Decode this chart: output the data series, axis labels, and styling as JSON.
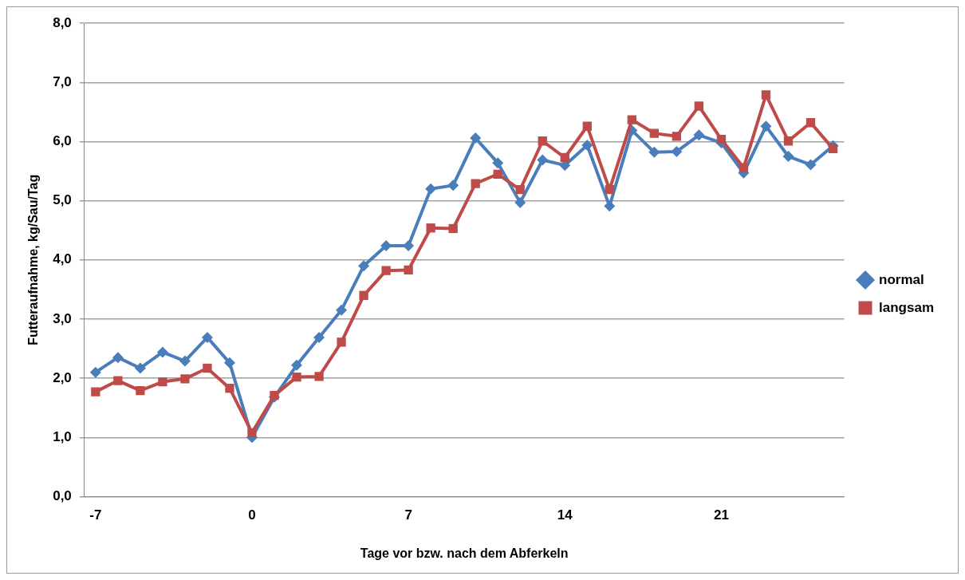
{
  "chart_data": {
    "type": "line",
    "xlabel": "Tage vor bzw. nach dem Abferkeln",
    "ylabel": "Futteraufnahme, kg/Sau/Tag",
    "x": [
      -7,
      -6,
      -5,
      -4,
      -3,
      -2,
      -1,
      0,
      1,
      2,
      3,
      4,
      5,
      6,
      7,
      8,
      9,
      10,
      11,
      12,
      13,
      14,
      15,
      16,
      17,
      18,
      19,
      20,
      21,
      22,
      23,
      24,
      25,
      26
    ],
    "series": [
      {
        "name": "normal",
        "color": "#4a7ebb",
        "marker": "diamond",
        "values": [
          2.1,
          2.35,
          2.17,
          2.44,
          2.29,
          2.69,
          2.26,
          1.0,
          1.68,
          2.22,
          2.69,
          3.15,
          3.9,
          4.24,
          4.24,
          5.2,
          5.26,
          6.06,
          5.64,
          4.97,
          5.69,
          5.6,
          5.94,
          4.91,
          6.19,
          5.82,
          5.83,
          6.11,
          5.98,
          5.47,
          6.26,
          5.75,
          5.61,
          5.93
        ]
      },
      {
        "name": "langsam",
        "color": "#be4b48",
        "marker": "square",
        "values": [
          1.77,
          1.96,
          1.79,
          1.94,
          1.99,
          2.17,
          1.83,
          1.08,
          1.71,
          2.02,
          2.03,
          2.61,
          3.4,
          3.82,
          3.83,
          4.54,
          4.53,
          5.29,
          5.45,
          5.19,
          6.01,
          5.73,
          6.26,
          5.19,
          6.37,
          6.14,
          6.09,
          6.6,
          6.04,
          5.56,
          6.79,
          6.01,
          6.32,
          5.88
        ]
      }
    ],
    "xlim": [
      -7.5,
      26.5
    ],
    "xticks": [
      -7,
      0,
      7,
      14,
      21
    ],
    "ylim": [
      0,
      8
    ],
    "yticks": [
      {
        "value": 0,
        "label": "0,0"
      },
      {
        "value": 1,
        "label": "1,0"
      },
      {
        "value": 2,
        "label": "2,0"
      },
      {
        "value": 3,
        "label": "3,0"
      },
      {
        "value": 4,
        "label": "4,0"
      },
      {
        "value": 5,
        "label": "5,0"
      },
      {
        "value": 6,
        "label": "6,0"
      },
      {
        "value": 7,
        "label": "7,0"
      },
      {
        "value": 8,
        "label": "8,0"
      }
    ],
    "grid": "y",
    "legend": "right",
    "line_style": "solid"
  }
}
